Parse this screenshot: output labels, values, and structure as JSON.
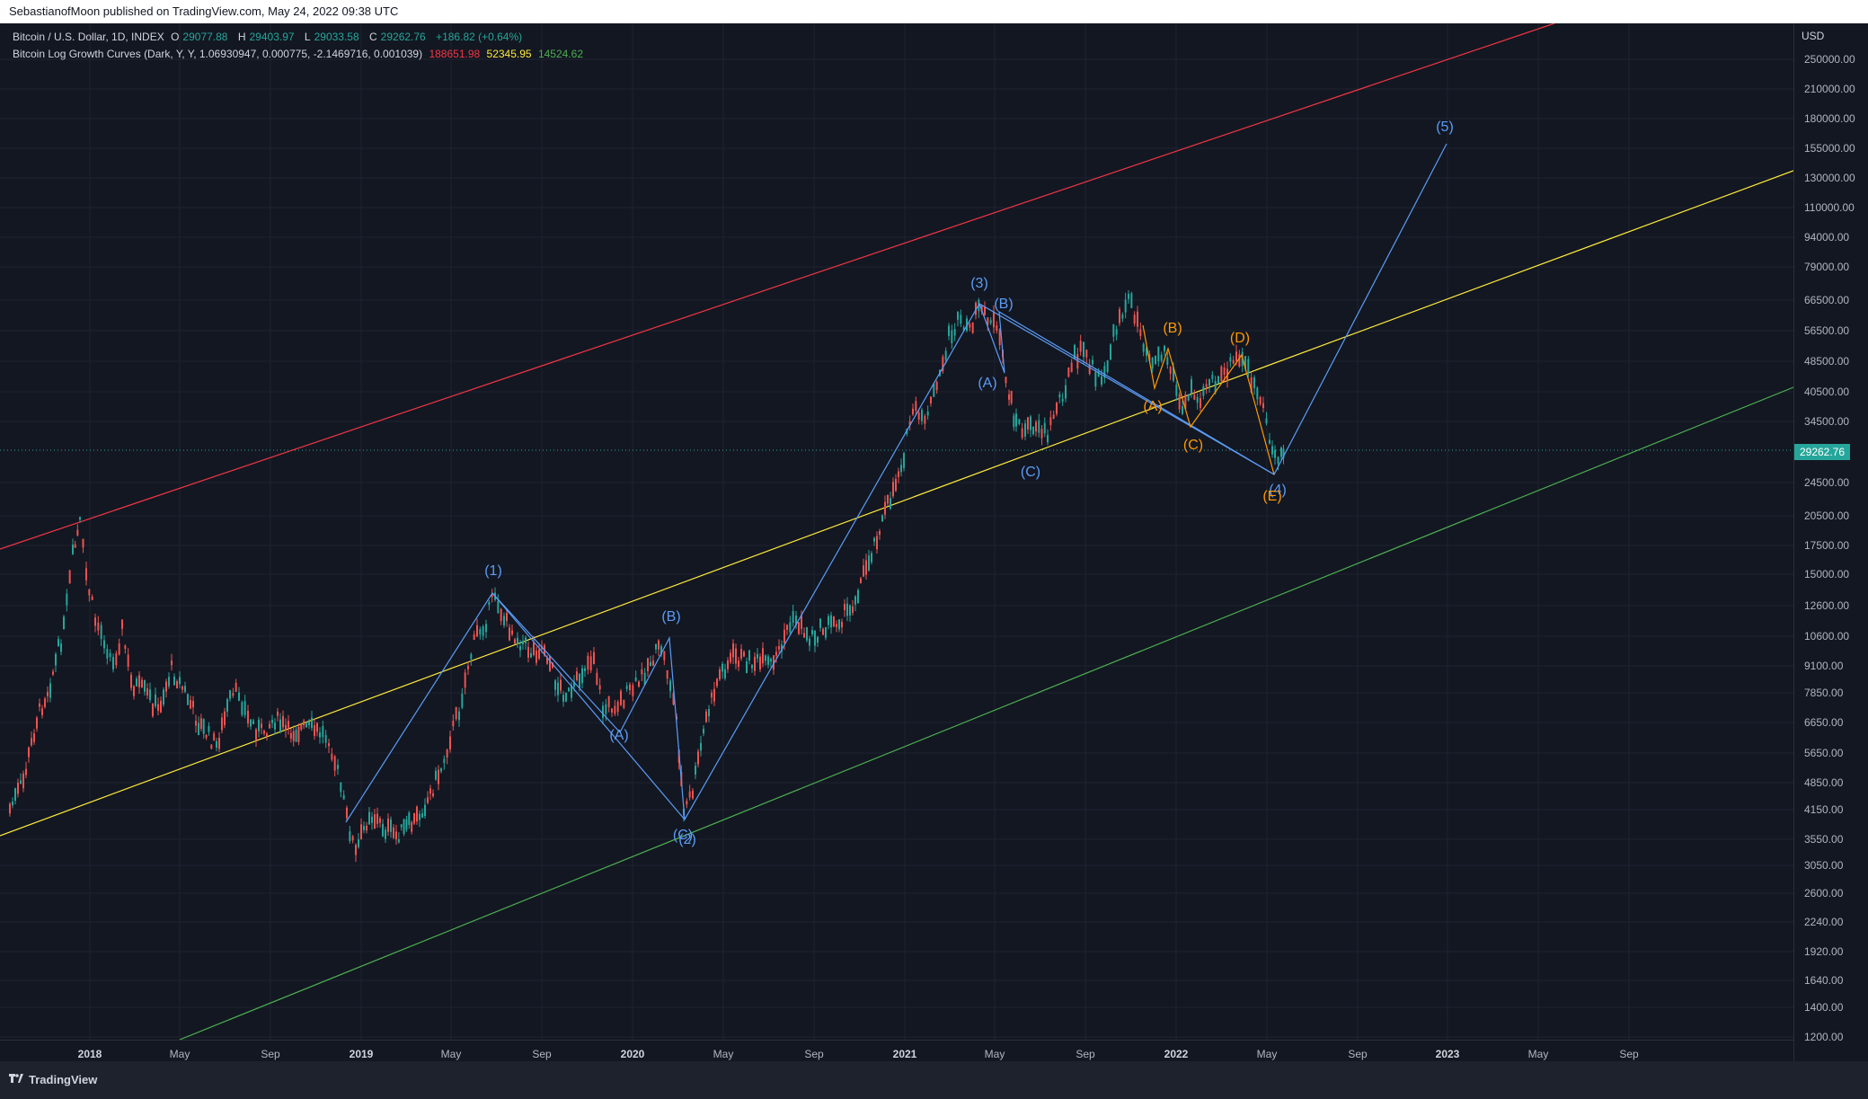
{
  "header": {
    "publish_text": "SebastianofMoon published on TradingView.com, May 24, 2022 09:38 UTC"
  },
  "legend": {
    "symbol": "Bitcoin / U.S. Dollar, 1D, INDEX",
    "open_label": "O",
    "open": "29077.88",
    "high_label": "H",
    "high": "29403.97",
    "low_label": "L",
    "low": "29033.58",
    "close_label": "C",
    "close": "29262.76",
    "change": "+186.82 (+0.64%)",
    "indicator": "Bitcoin Log Growth Curves (Dark, Y, Y, 1.06930947, 0.000775, -2.1469716, 0.001039)",
    "upper_value": "188651.98",
    "mid_value": "52345.95",
    "lower_value": "14524.62"
  },
  "price_axis": {
    "unit": "USD",
    "ticks": [
      "250000.00",
      "210000.00",
      "180000.00",
      "155000.00",
      "130000.00",
      "110000.00",
      "94000.00",
      "79000.00",
      "66500.00",
      "56500.00",
      "48500.00",
      "40500.00",
      "34500.00",
      "24500.00",
      "20500.00",
      "17500.00",
      "15000.00",
      "12600.00",
      "10600.00",
      "9100.00",
      "7850.00",
      "6650.00",
      "5650.00",
      "4850.00",
      "4150.00",
      "3550.00",
      "3050.00",
      "2600.00",
      "2240.00",
      "1920.00",
      "1640.00",
      "1400.00",
      "1200.00"
    ],
    "last_price": "29262.76"
  },
  "time_axis": {
    "ticks": [
      {
        "label": "2018",
        "year": true
      },
      {
        "label": "May",
        "year": false
      },
      {
        "label": "Sep",
        "year": false
      },
      {
        "label": "2019",
        "year": true
      },
      {
        "label": "May",
        "year": false
      },
      {
        "label": "Sep",
        "year": false
      },
      {
        "label": "2020",
        "year": true
      },
      {
        "label": "May",
        "year": false
      },
      {
        "label": "Sep",
        "year": false
      },
      {
        "label": "2021",
        "year": true
      },
      {
        "label": "May",
        "year": false
      },
      {
        "label": "Sep",
        "year": false
      },
      {
        "label": "2022",
        "year": true
      },
      {
        "label": "May",
        "year": false
      },
      {
        "label": "Sep",
        "year": false
      },
      {
        "label": "2023",
        "year": true
      },
      {
        "label": "May",
        "year": false
      },
      {
        "label": "Sep",
        "year": false
      }
    ]
  },
  "waves": [
    {
      "label": "(1)",
      "color": "blue"
    },
    {
      "label": "(2)",
      "color": "blue"
    },
    {
      "label": "(3)",
      "color": "blue"
    },
    {
      "label": "(4)",
      "color": "blue"
    },
    {
      "label": "(5)",
      "color": "blue"
    },
    {
      "label": "(A)",
      "color": "blue"
    },
    {
      "label": "(B)",
      "color": "blue"
    },
    {
      "label": "(C)",
      "color": "blue"
    },
    {
      "label": "(A)",
      "color": "blue"
    },
    {
      "label": "(B)",
      "color": "blue"
    },
    {
      "label": "(C)",
      "color": "blue"
    },
    {
      "label": "(A)",
      "color": "orange"
    },
    {
      "label": "(B)",
      "color": "orange"
    },
    {
      "label": "(C)",
      "color": "orange"
    },
    {
      "label": "(D)",
      "color": "orange"
    },
    {
      "label": "(E)",
      "color": "orange"
    }
  ],
  "colors": {
    "background": "#131722",
    "up_candle": "#26a69a",
    "down_candle": "#ef5350",
    "upper_curve": "#f23645",
    "mid_curve": "#ffeb3b",
    "lower_curve": "#4caf50",
    "wave_blue": "#5b9cf6",
    "wave_orange": "#ff9800"
  },
  "footer": {
    "brand": "TradingView",
    "logo_icon": "tradingview-logo-icon"
  }
}
